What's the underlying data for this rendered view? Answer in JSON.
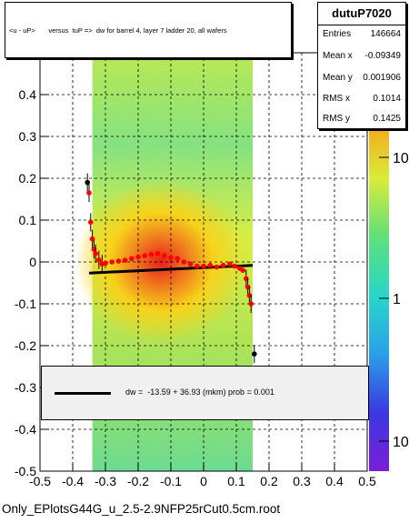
{
  "title": "<u - uP>       versus  tuP =>  dw for barrel 4, layer 7 ladder 20, all wafers",
  "stats": {
    "name": "dutuP7020",
    "rows": [
      {
        "label": "Entries",
        "value": "146664"
      },
      {
        "label": "Mean x",
        "value": "-0.09349"
      },
      {
        "label": "Mean y",
        "value": "0.001906"
      },
      {
        "label": "RMS x",
        "value": "0.1014"
      },
      {
        "label": "RMS y",
        "value": "0.1425"
      }
    ]
  },
  "fit_text": "dw =  -13.59 + 36.93 (mkm) prob = 0.001",
  "footer": "Only_EPlotsG44G_u_2.5-2.9NFP25rCut0.5cm.root",
  "colors": {
    "fit_line": "#000000",
    "profile_points": "#ff0000",
    "fit_box_bg": "#f0f0f0"
  },
  "chart_data": {
    "type": "heatmap",
    "xlim": [
      -0.5,
      0.5
    ],
    "ylim": [
      -0.5,
      0.5
    ],
    "x_ticks": [
      "-0.5",
      "-0.4",
      "-0.3",
      "-0.2",
      "-0.1",
      "0",
      "0.1",
      "0.2",
      "0.3",
      "0.4",
      "0.5"
    ],
    "y_ticks": [
      "-0.5",
      "-0.4",
      "-0.3",
      "-0.2",
      "-0.1",
      "0",
      "0.1",
      "0.2",
      "0.3",
      "0.4",
      "0.5"
    ],
    "grid": true,
    "z_scale": "log",
    "z_ticks": [
      "10",
      "1",
      "10"
    ],
    "density_region": {
      "x_range": [
        -0.34,
        0.15
      ],
      "center": [
        -0.13,
        0.0
      ]
    },
    "fit": {
      "intercept_mkm": -13.59,
      "slope_mkm": 36.93,
      "x_range": [
        -0.35,
        0.15
      ]
    },
    "profile_points": [
      {
        "x": -0.355,
        "y": 0.19
      },
      {
        "x": -0.35,
        "y": 0.165
      },
      {
        "x": -0.345,
        "y": 0.095
      },
      {
        "x": -0.34,
        "y": 0.055
      },
      {
        "x": -0.335,
        "y": 0.03
      },
      {
        "x": -0.33,
        "y": 0.02
      },
      {
        "x": -0.32,
        "y": 0.005
      },
      {
        "x": -0.31,
        "y": -0.005
      },
      {
        "x": -0.3,
        "y": -0.003
      },
      {
        "x": -0.28,
        "y": 0.0
      },
      {
        "x": -0.26,
        "y": 0.002
      },
      {
        "x": -0.24,
        "y": 0.004
      },
      {
        "x": -0.22,
        "y": 0.008
      },
      {
        "x": -0.2,
        "y": 0.012
      },
      {
        "x": -0.18,
        "y": 0.015
      },
      {
        "x": -0.16,
        "y": 0.018
      },
      {
        "x": -0.14,
        "y": 0.02
      },
      {
        "x": -0.12,
        "y": 0.015
      },
      {
        "x": -0.1,
        "y": 0.01
      },
      {
        "x": -0.08,
        "y": 0.008
      },
      {
        "x": -0.06,
        "y": 0.0
      },
      {
        "x": -0.04,
        "y": -0.005
      },
      {
        "x": -0.02,
        "y": -0.01
      },
      {
        "x": 0.0,
        "y": -0.01
      },
      {
        "x": 0.02,
        "y": -0.008
      },
      {
        "x": 0.04,
        "y": -0.012
      },
      {
        "x": 0.06,
        "y": -0.008
      },
      {
        "x": 0.08,
        "y": -0.005
      },
      {
        "x": 0.095,
        "y": -0.01
      },
      {
        "x": 0.11,
        "y": -0.015
      },
      {
        "x": 0.12,
        "y": -0.02
      },
      {
        "x": 0.13,
        "y": -0.04
      },
      {
        "x": 0.135,
        "y": -0.06
      },
      {
        "x": 0.14,
        "y": -0.08
      },
      {
        "x": 0.145,
        "y": -0.1
      },
      {
        "x": 0.155,
        "y": -0.22
      }
    ]
  }
}
